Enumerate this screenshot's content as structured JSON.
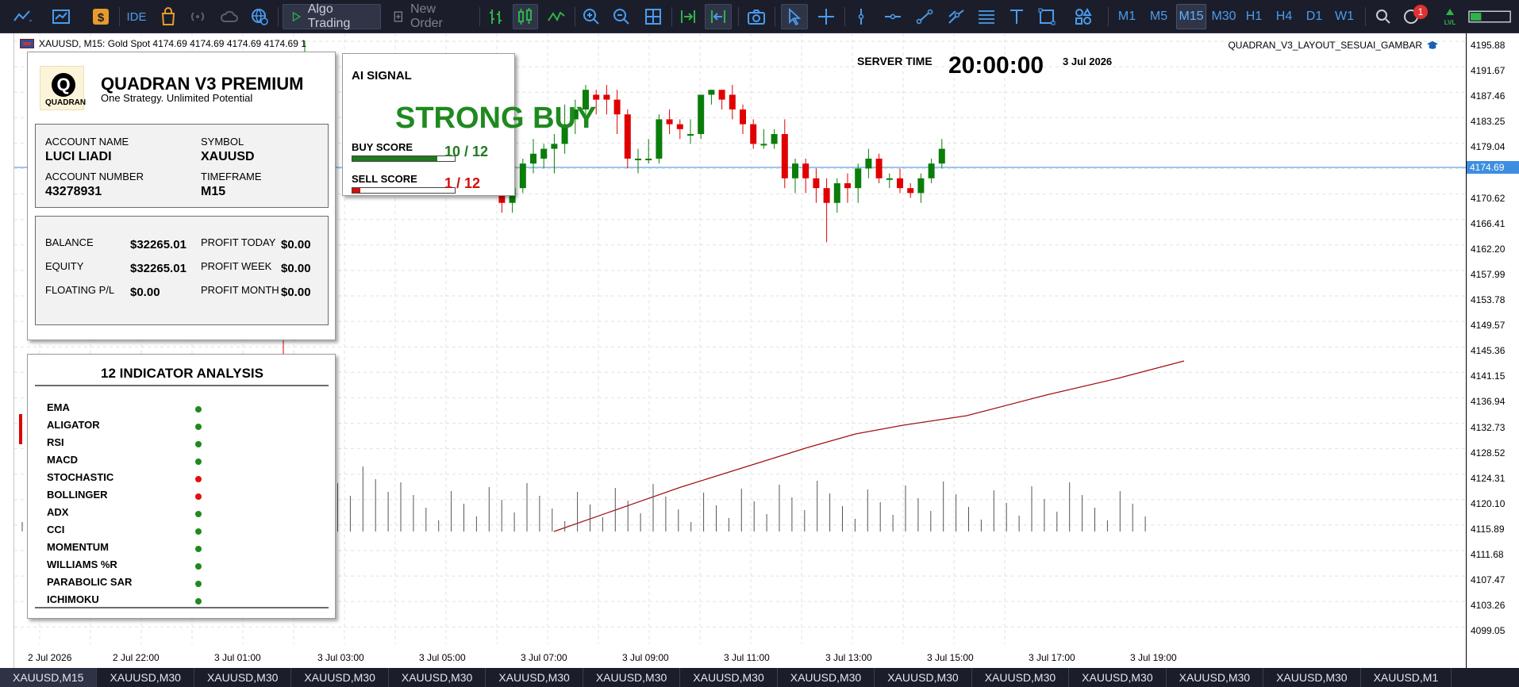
{
  "toolbar": {
    "algo_trading_label": "Algo Trading",
    "new_order_label": "New Order",
    "ide_label": "IDE",
    "notification_count": "1",
    "timeframes": [
      "M1",
      "M5",
      "M15",
      "M30",
      "H1",
      "H4",
      "D1",
      "W1"
    ],
    "active_timeframe": "M15",
    "level_icon_text": "LVL"
  },
  "chart": {
    "symbol_header": "XAUUSD, M15:  Gold Spot  4174.69 4174.69 4174.69 4174.69  1",
    "layout_name": "QUADRAN_V3_LAYOUT_SESUAI_GAMBAR",
    "server_time_label": "SERVER TIME",
    "server_time": "20:00:00",
    "server_date": "3 Jul 2026",
    "current_price": "4174.69",
    "price_ticks": [
      "4195.88",
      "4191.67",
      "4187.46",
      "4183.25",
      "4179.04",
      "4170.62",
      "4166.41",
      "4162.20",
      "4157.99",
      "4153.78",
      "4149.57",
      "4145.36",
      "4141.15",
      "4136.94",
      "4132.73",
      "4128.52",
      "4124.31",
      "4120.10",
      "4115.89",
      "4111.68",
      "4107.47",
      "4103.26",
      "4099.05"
    ],
    "time_ticks": [
      "2 Jul 2026",
      "2 Jul 22:00",
      "3 Jul 01:00",
      "3 Jul 03:00",
      "3 Jul 05:00",
      "3 Jul 07:00",
      "3 Jul 09:00",
      "3 Jul 11:00",
      "3 Jul 13:00",
      "3 Jul 15:00",
      "3 Jul 17:00",
      "3 Jul 19:00"
    ],
    "up_color": "#0a7d0a",
    "down_color": "#e00000",
    "ma_color": "#a11212",
    "price_line_color": "#3d8ee0"
  },
  "dashboard": {
    "title": "QUADRAN V3 PREMIUM",
    "subtitle": "One Strategy. Unlimited Potential",
    "logo_text": "QUADRAN",
    "account_name_label": "ACCOUNT NAME",
    "account_name": "LUCI LIADI",
    "symbol_label": "SYMBOL",
    "symbol": "XAUUSD",
    "account_number_label": "ACCOUNT NUMBER",
    "account_number": "43278931",
    "timeframe_label": "TIMEFRAME",
    "timeframe": "M15",
    "balance_label": "BALANCE",
    "balance": "$32265.01",
    "equity_label": "EQUITY",
    "equity": "$32265.01",
    "floating_label": "FLOATING P/L",
    "floating": "$0.00",
    "profit_today_label": "PROFIT TODAY",
    "profit_today": "$0.00",
    "profit_week_label": "PROFIT WEEK",
    "profit_week": "$0.00",
    "profit_month_label": "PROFIT MONTH",
    "profit_month": "$0.00"
  },
  "signal": {
    "title": "AI SIGNAL",
    "main": "STRONG BUY",
    "main_color": "#1e8a1e",
    "buy_label": "BUY SCORE",
    "buy_value": "10",
    "buy_total": "12",
    "buy_score_text": "10 / 12",
    "buy_fraction": 0.83,
    "buy_color": "#1e7a1e",
    "sell_label": "SELL SCORE",
    "sell_value": "1",
    "sell_total": "12",
    "sell_score_text": "1 / 12",
    "sell_fraction": 0.08,
    "sell_color": "#d01010"
  },
  "indicators": {
    "title": "12 INDICATOR ANALYSIS",
    "items": [
      {
        "name": "EMA",
        "status": "green"
      },
      {
        "name": "ALIGATOR",
        "status": "green"
      },
      {
        "name": "RSI",
        "status": "green"
      },
      {
        "name": "MACD",
        "status": "green"
      },
      {
        "name": "STOCHASTIC",
        "status": "red"
      },
      {
        "name": "BOLLINGER",
        "status": "red"
      },
      {
        "name": "ADX",
        "status": "green"
      },
      {
        "name": "CCI",
        "status": "green"
      },
      {
        "name": "MOMENTUM",
        "status": "green"
      },
      {
        "name": "WILLIAMS %R",
        "status": "green"
      },
      {
        "name": "PARABOLIC SAR",
        "status": "green"
      },
      {
        "name": "ICHIMOKU",
        "status": "green"
      }
    ],
    "colors": {
      "green": "#1e8a1e",
      "red": "#e01010"
    }
  },
  "tabs": [
    "XAUUSD,M15",
    "XAUUSD,M30",
    "XAUUSD,M30",
    "XAUUSD,M30",
    "XAUUSD,M30",
    "XAUUSD,M30",
    "XAUUSD,M30",
    "XAUUSD,M30",
    "XAUUSD,M30",
    "XAUUSD,M30",
    "XAUUSD,M30",
    "XAUUSD,M30",
    "XAUUSD,M30",
    "XAUUSD,M30",
    "XAUUSD,M1"
  ],
  "active_tab": "XAUUSD,M15"
}
